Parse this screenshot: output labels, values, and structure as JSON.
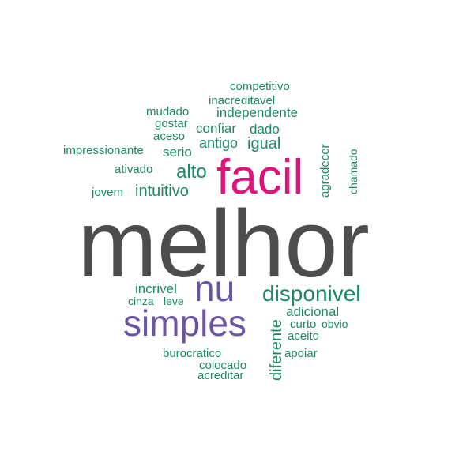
{
  "colors": {
    "dark": "#4d4d4d",
    "pink": "#e0127b",
    "purple": "#6a55a2",
    "green": "#1a8a64"
  },
  "words": {
    "melhor": "melhor",
    "facil": "facil",
    "nu": "nu",
    "simples": "simples",
    "disponivel": "disponivel",
    "alto": "alto",
    "intuitivo": "intuitivo",
    "antigo": "antigo",
    "igual": "igual",
    "serio": "serio",
    "confiar": "confiar",
    "dado": "dado",
    "independente": "independente",
    "inacreditavel": "inacreditavel",
    "competitivo": "competitivo",
    "mudado": "mudado",
    "gostar": "gostar",
    "aceso": "aceso",
    "impressionante": "impressionante",
    "ativado": "ativado",
    "jovem": "jovem",
    "agradecer": "agradecer",
    "chamado": "chamado",
    "incrivel": "incrivel",
    "cinza": "cinza",
    "leve": "leve",
    "adicional": "adicional",
    "curto": "curto",
    "obvio": "obvio",
    "aceito": "aceito",
    "diferente": "diferente",
    "apoiar": "apoiar",
    "burocratico": "burocratico",
    "colocado": "colocado",
    "acreditar": "acreditar"
  }
}
